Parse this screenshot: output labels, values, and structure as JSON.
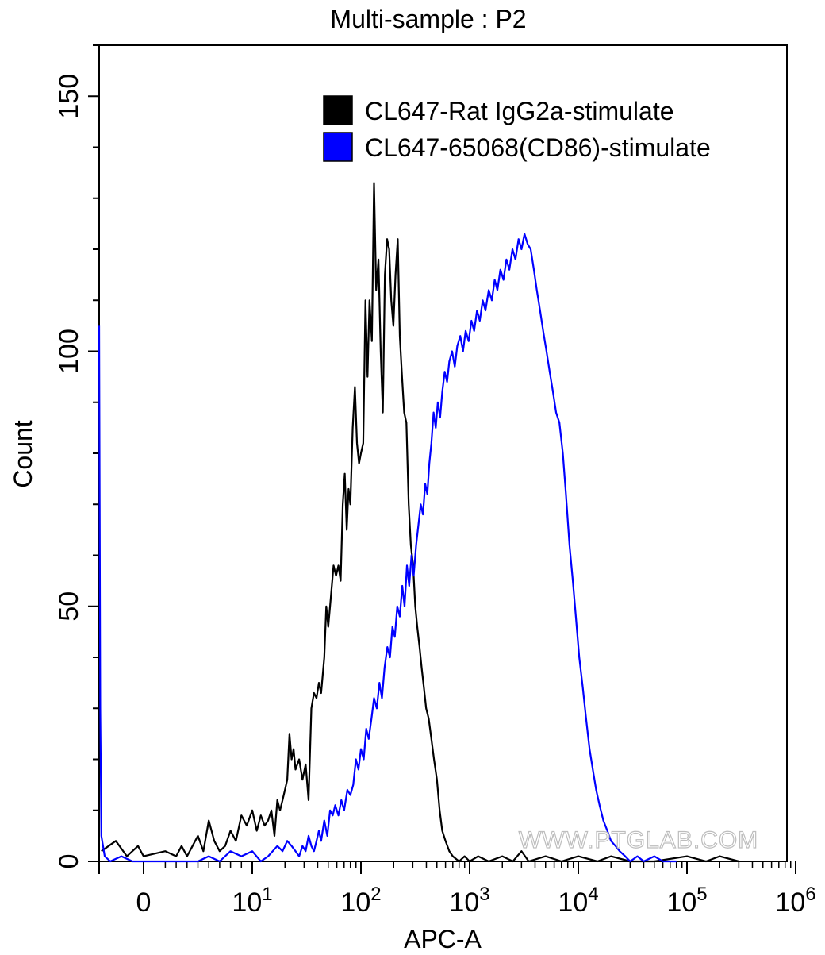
{
  "chart_data": {
    "type": "line",
    "title": "Multi-sample : P2",
    "xlabel": "APC-A",
    "ylabel": "Count",
    "xscale": "biexponential-log",
    "xlim": [
      -40,
      1000000
    ],
    "ylim": [
      0,
      160
    ],
    "x_ticks": [
      {
        "value": 0,
        "base": "0",
        "exp": ""
      },
      {
        "value": 10,
        "base": "10",
        "exp": "1"
      },
      {
        "value": 100,
        "base": "10",
        "exp": "2"
      },
      {
        "value": 1000,
        "base": "10",
        "exp": "3"
      },
      {
        "value": 10000,
        "base": "10",
        "exp": "4"
      },
      {
        "value": 100000,
        "base": "10",
        "exp": "5"
      },
      {
        "value": 1000000,
        "base": "10",
        "exp": "6"
      }
    ],
    "y_ticks": [
      0,
      50,
      100,
      150
    ],
    "grid": false,
    "legend_position": "top-right",
    "watermark": "WWW.PTGLAB.COM",
    "series": [
      {
        "name": "CL647-Rat IgG2a-stimulate",
        "color": "#000000",
        "points": [
          [
            -38,
            2
          ],
          [
            -25,
            4
          ],
          [
            -15,
            1
          ],
          [
            -5,
            3
          ],
          [
            0,
            1
          ],
          [
            2,
            2
          ],
          [
            3,
            1
          ],
          [
            3.5,
            3
          ],
          [
            4,
            1
          ],
          [
            4.5,
            3
          ],
          [
            5,
            5
          ],
          [
            5.5,
            2
          ],
          [
            6,
            8
          ],
          [
            6.5,
            4
          ],
          [
            7,
            2
          ],
          [
            7.5,
            3
          ],
          [
            8,
            6
          ],
          [
            8.5,
            4
          ],
          [
            9,
            9
          ],
          [
            9.5,
            7
          ],
          [
            10,
            10
          ],
          [
            11,
            6
          ],
          [
            12,
            9
          ],
          [
            13,
            7
          ],
          [
            14,
            8
          ],
          [
            15,
            10
          ],
          [
            16,
            5
          ],
          [
            17,
            12
          ],
          [
            18,
            10
          ],
          [
            19,
            12
          ],
          [
            20,
            14
          ],
          [
            21,
            16
          ],
          [
            22,
            25
          ],
          [
            23,
            20
          ],
          [
            24,
            22
          ],
          [
            25,
            18
          ],
          [
            27,
            20
          ],
          [
            29,
            16
          ],
          [
            31,
            19
          ],
          [
            33,
            12
          ],
          [
            35,
            30
          ],
          [
            37,
            33
          ],
          [
            39,
            32
          ],
          [
            41,
            35
          ],
          [
            43,
            33
          ],
          [
            46,
            40
          ],
          [
            48,
            50
          ],
          [
            50,
            46
          ],
          [
            53,
            52
          ],
          [
            56,
            58
          ],
          [
            59,
            56
          ],
          [
            62,
            58
          ],
          [
            65,
            55
          ],
          [
            68,
            70
          ],
          [
            71,
            76
          ],
          [
            74,
            65
          ],
          [
            77,
            73
          ],
          [
            80,
            70
          ],
          [
            84,
            85
          ],
          [
            88,
            93
          ],
          [
            92,
            82
          ],
          [
            96,
            78
          ],
          [
            100,
            80
          ],
          [
            105,
            82
          ],
          [
            110,
            110
          ],
          [
            115,
            95
          ],
          [
            120,
            110
          ],
          [
            126,
            102
          ],
          [
            132,
            133
          ],
          [
            138,
            112
          ],
          [
            145,
            118
          ],
          [
            152,
            100
          ],
          [
            159,
            88
          ],
          [
            166,
            115
          ],
          [
            174,
            122
          ],
          [
            182,
            120
          ],
          [
            190,
            110
          ],
          [
            199,
            105
          ],
          [
            208,
            115
          ],
          [
            218,
            122
          ],
          [
            228,
            103
          ],
          [
            239,
            95
          ],
          [
            250,
            88
          ],
          [
            262,
            86
          ],
          [
            275,
            70
          ],
          [
            288,
            62
          ],
          [
            302,
            58
          ],
          [
            316,
            50
          ],
          [
            330,
            46
          ],
          [
            346,
            42
          ],
          [
            362,
            38
          ],
          [
            380,
            34
          ],
          [
            398,
            30
          ],
          [
            420,
            28
          ],
          [
            445,
            24
          ],
          [
            470,
            20
          ],
          [
            500,
            16
          ],
          [
            530,
            10
          ],
          [
            560,
            6
          ],
          [
            600,
            4
          ],
          [
            650,
            2
          ],
          [
            700,
            1
          ],
          [
            800,
            0
          ],
          [
            900,
            1
          ],
          [
            1000,
            0
          ],
          [
            1200,
            1
          ],
          [
            1500,
            0
          ],
          [
            2000,
            1
          ],
          [
            2500,
            0
          ],
          [
            3000,
            2
          ],
          [
            3500,
            0
          ],
          [
            5000,
            1
          ],
          [
            7000,
            0
          ],
          [
            10000,
            1
          ],
          [
            15000,
            0
          ],
          [
            20000,
            1
          ],
          [
            30000,
            0
          ],
          [
            50000,
            0
          ],
          [
            100000,
            1
          ],
          [
            150000,
            0
          ],
          [
            200000,
            1
          ],
          [
            300000,
            0
          ]
        ]
      },
      {
        "name": "CL647-65068(CD86)-stimulate",
        "color": "#0000ff",
        "points": [
          [
            -40,
            105
          ],
          [
            -39,
            30
          ],
          [
            -38,
            5
          ],
          [
            -35,
            1
          ],
          [
            -30,
            0
          ],
          [
            -20,
            1
          ],
          [
            -10,
            0
          ],
          [
            0,
            0
          ],
          [
            3,
            0
          ],
          [
            5,
            0
          ],
          [
            6,
            1
          ],
          [
            7,
            0
          ],
          [
            8,
            2
          ],
          [
            9,
            1
          ],
          [
            10,
            2
          ],
          [
            12,
            0
          ],
          [
            14,
            1
          ],
          [
            17,
            3
          ],
          [
            19,
            2
          ],
          [
            21,
            4
          ],
          [
            23,
            3
          ],
          [
            25,
            2
          ],
          [
            27,
            1
          ],
          [
            29,
            3
          ],
          [
            31,
            2
          ],
          [
            33,
            5
          ],
          [
            35,
            3
          ],
          [
            37,
            2
          ],
          [
            39,
            4
          ],
          [
            41,
            6
          ],
          [
            43,
            4
          ],
          [
            46,
            8
          ],
          [
            49,
            5
          ],
          [
            52,
            10
          ],
          [
            55,
            9
          ],
          [
            58,
            11
          ],
          [
            62,
            9
          ],
          [
            66,
            12
          ],
          [
            70,
            10
          ],
          [
            75,
            14
          ],
          [
            80,
            13
          ],
          [
            85,
            15
          ],
          [
            90,
            20
          ],
          [
            95,
            18
          ],
          [
            100,
            22
          ],
          [
            106,
            20
          ],
          [
            112,
            26
          ],
          [
            118,
            24
          ],
          [
            125,
            28
          ],
          [
            132,
            32
          ],
          [
            140,
            30
          ],
          [
            148,
            35
          ],
          [
            156,
            32
          ],
          [
            165,
            38
          ],
          [
            175,
            42
          ],
          [
            185,
            40
          ],
          [
            195,
            46
          ],
          [
            205,
            44
          ],
          [
            216,
            50
          ],
          [
            228,
            48
          ],
          [
            240,
            54
          ],
          [
            252,
            50
          ],
          [
            265,
            58
          ],
          [
            278,
            54
          ],
          [
            292,
            60
          ],
          [
            306,
            56
          ],
          [
            322,
            62
          ],
          [
            338,
            66
          ],
          [
            355,
            70
          ],
          [
            372,
            68
          ],
          [
            390,
            74
          ],
          [
            408,
            72
          ],
          [
            426,
            78
          ],
          [
            445,
            82
          ],
          [
            466,
            88
          ],
          [
            488,
            85
          ],
          [
            510,
            90
          ],
          [
            535,
            87
          ],
          [
            560,
            92
          ],
          [
            590,
            96
          ],
          [
            620,
            94
          ],
          [
            650,
            98
          ],
          [
            690,
            100
          ],
          [
            730,
            97
          ],
          [
            770,
            101
          ],
          [
            820,
            103
          ],
          [
            870,
            100
          ],
          [
            920,
            104
          ],
          [
            980,
            102
          ],
          [
            1040,
            106
          ],
          [
            1100,
            104
          ],
          [
            1170,
            108
          ],
          [
            1240,
            106
          ],
          [
            1320,
            110
          ],
          [
            1400,
            108
          ],
          [
            1500,
            112
          ],
          [
            1600,
            110
          ],
          [
            1700,
            114
          ],
          [
            1800,
            112
          ],
          [
            1920,
            116
          ],
          [
            2050,
            114
          ],
          [
            2180,
            118
          ],
          [
            2320,
            116
          ],
          [
            2480,
            120
          ],
          [
            2640,
            118
          ],
          [
            2820,
            122
          ],
          [
            3000,
            120
          ],
          [
            3200,
            123
          ],
          [
            3420,
            121
          ],
          [
            3650,
            120
          ],
          [
            3900,
            116
          ],
          [
            4150,
            112
          ],
          [
            4450,
            108
          ],
          [
            4750,
            104
          ],
          [
            5100,
            100
          ],
          [
            5450,
            96
          ],
          [
            5850,
            92
          ],
          [
            6250,
            88
          ],
          [
            6700,
            86
          ],
          [
            7200,
            80
          ],
          [
            7700,
            72
          ],
          [
            8300,
            62
          ],
          [
            8900,
            55
          ],
          [
            9500,
            48
          ],
          [
            10200,
            40
          ],
          [
            11000,
            34
          ],
          [
            11800,
            28
          ],
          [
            12700,
            22
          ],
          [
            13600,
            18
          ],
          [
            14600,
            14
          ],
          [
            15700,
            11
          ],
          [
            17000,
            8
          ],
          [
            18500,
            6
          ],
          [
            20000,
            4
          ],
          [
            22000,
            3
          ],
          [
            24000,
            2
          ],
          [
            27000,
            1
          ],
          [
            30000,
            0
          ],
          [
            35000,
            1
          ],
          [
            40000,
            0
          ],
          [
            50000,
            1
          ],
          [
            60000,
            0
          ],
          [
            80000,
            0
          ]
        ]
      }
    ]
  }
}
